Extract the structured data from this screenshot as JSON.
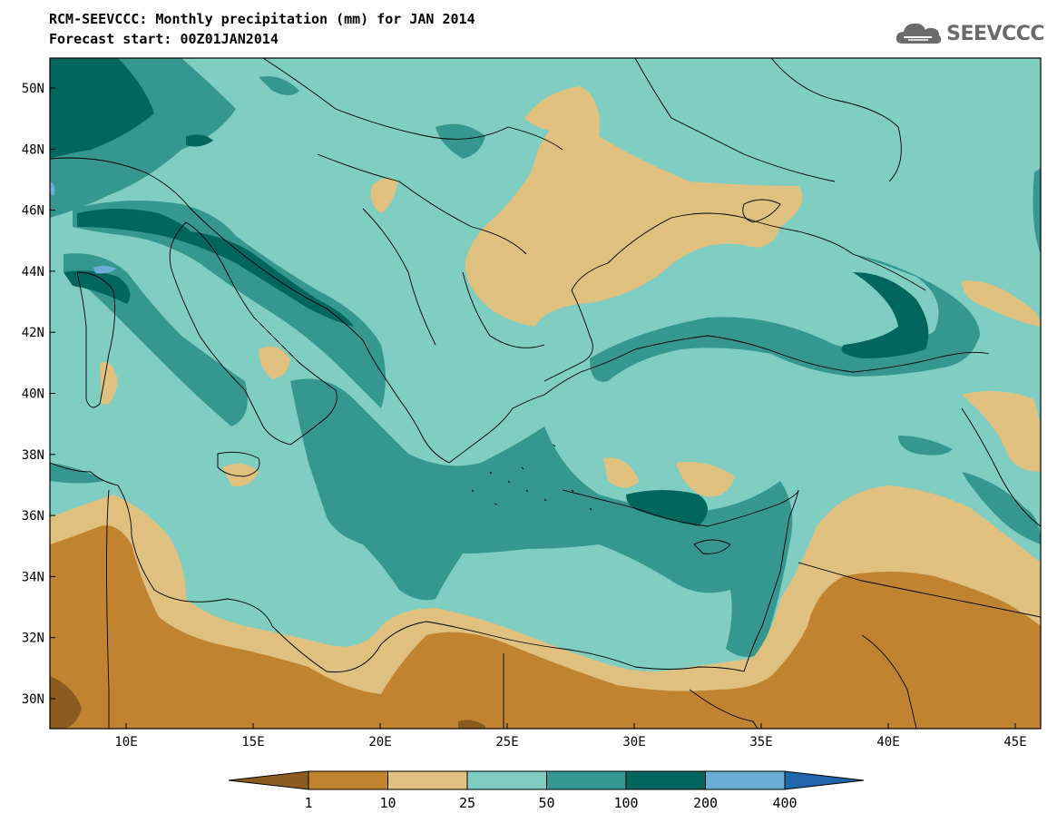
{
  "header": {
    "title": "RCM-SEEVCCC: Monthly precipitation (mm) for JAN 2014",
    "subtitle": "Forecast start: 00Z01JAN2014"
  },
  "logo": {
    "text": "SEEVCCC",
    "icon": "cloud-icon"
  },
  "map": {
    "lon_labels": [
      "10E",
      "15E",
      "20E",
      "25E",
      "30E",
      "35E",
      "40E",
      "45E"
    ],
    "lat_labels": [
      "50N",
      "48N",
      "46N",
      "44N",
      "42N",
      "40N",
      "38N",
      "36N",
      "34N",
      "32N",
      "30N"
    ]
  },
  "colorbar": {
    "labels": [
      "1",
      "10",
      "25",
      "50",
      "100",
      "200",
      "400"
    ],
    "colors": [
      "#8b5a1e",
      "#c08431",
      "#dfc07f",
      "#80cdc1",
      "#35978f",
      "#01665e",
      "#6aaed6",
      "#2166ac"
    ]
  }
}
